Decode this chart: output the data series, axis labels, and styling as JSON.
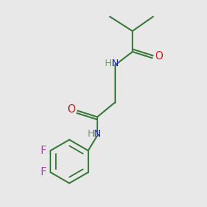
{
  "bg_color": "#e8e8e8",
  "bond_color": "#3a7a3a",
  "nitrogen_color": "#2020cc",
  "oxygen_color": "#cc2020",
  "fluorine_color": "#bb44bb",
  "h_color": "#7a9a7a",
  "line_width": 1.6,
  "font_size": 10,
  "fig_size": [
    3.0,
    3.0
  ],
  "dpi": 100,
  "xlim": [
    0,
    10
  ],
  "ylim": [
    0,
    10
  ]
}
